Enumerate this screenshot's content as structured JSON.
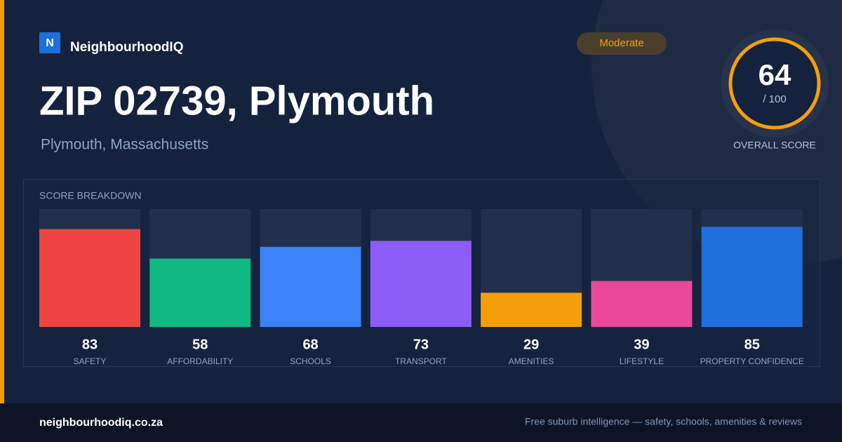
{
  "header": {
    "logo": "N",
    "brand": "NeighbourhoodIQ",
    "badge": "Moderate"
  },
  "title": "ZIP 02739, Plymouth",
  "subtitle": "Plymouth, Massachusetts",
  "overall": {
    "score": "64",
    "out_of": "/ 100",
    "label": "OVERALL SCORE"
  },
  "chart_data": {
    "type": "bar",
    "title": "SCORE BREAKDOWN",
    "categories": [
      "SAFETY",
      "AFFORDABILITY",
      "SCHOOLS",
      "TRANSPORT",
      "AMENITIES",
      "LIFESTYLE",
      "PROPERTY CONFIDENCE"
    ],
    "values": [
      83,
      58,
      68,
      73,
      29,
      39,
      85
    ],
    "colors": [
      "#ef4444",
      "#10b981",
      "#3b82f6",
      "#8b5cf6",
      "#f59e0b",
      "#ec4899",
      "#1d6fdc"
    ],
    "ylim": [
      0,
      100
    ]
  },
  "footer": {
    "site": "neighbourhoodiq.co.za",
    "tagline": "Free suburb intelligence — safety, schools, amenities & reviews"
  }
}
